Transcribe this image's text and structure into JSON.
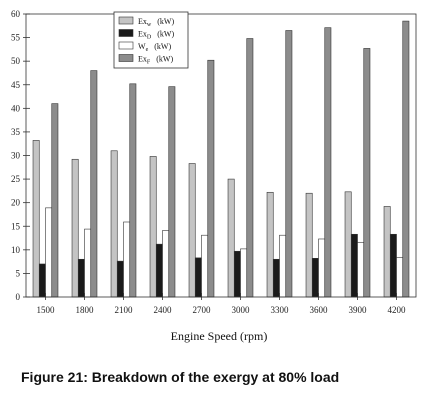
{
  "chart_data": {
    "type": "bar",
    "xlabel": "Engine Speed (rpm)",
    "ylabel": "",
    "ylim": [
      0,
      60
    ],
    "yticks": [
      "0",
      "5",
      "10",
      "15",
      "20",
      "25",
      "30",
      "35",
      "40",
      "45",
      "50",
      "55",
      "60"
    ],
    "categories": [
      "1500",
      "1800",
      "2100",
      "2400",
      "2700",
      "3000",
      "3300",
      "3600",
      "3900",
      "4200"
    ],
    "legend_position": "top-center",
    "series": [
      {
        "name": "Ex_w (kW)",
        "base": "Ex",
        "sub": "w",
        "unit": "(kW)",
        "color": "#c4c4c4",
        "values": [
          33.2,
          29.2,
          31.0,
          29.8,
          28.3,
          25.0,
          22.2,
          22.0,
          22.3,
          19.2
        ]
      },
      {
        "name": "Ex_D (kW)",
        "base": "Ex",
        "sub": "D",
        "unit": "(kW)",
        "color": "#1a1a1a",
        "values": [
          7.0,
          8.0,
          7.6,
          11.2,
          8.3,
          9.7,
          8.0,
          8.2,
          13.3,
          13.3
        ]
      },
      {
        "name": "W_e (kW)",
        "base": "W",
        "sub": "e",
        "unit": "(kW)",
        "color": "#ffffff",
        "values": [
          18.9,
          14.4,
          15.9,
          14.1,
          13.1,
          10.2,
          13.1,
          12.3,
          11.6,
          8.4
        ]
      },
      {
        "name": "Ex_F (kW)",
        "base": "Ex",
        "sub": "F",
        "unit": "(kW)",
        "color": "#8c8c8c",
        "values": [
          41.0,
          48.0,
          45.2,
          44.6,
          50.2,
          54.8,
          56.5,
          57.1,
          52.7,
          58.5
        ]
      }
    ]
  },
  "caption": "Figure 21: Breakdown of the exergy at 80% load"
}
